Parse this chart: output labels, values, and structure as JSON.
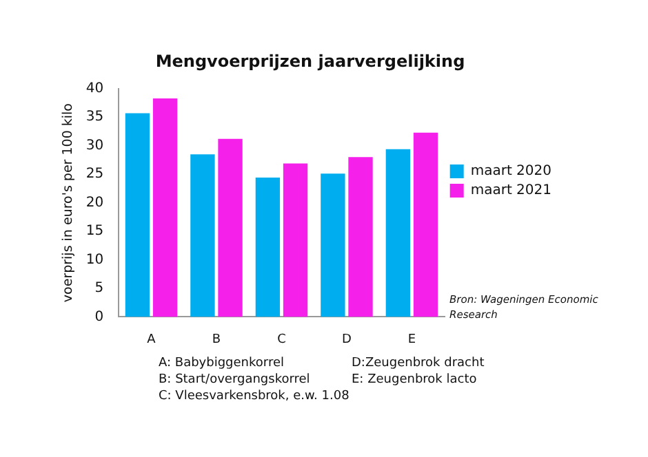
{
  "chart_data": {
    "type": "bar",
    "title": "Mengvoerprijzen jaarvergelijking",
    "ylabel": "voerprijs in euro's per 100 kilo",
    "categories": [
      "A",
      "B",
      "C",
      "D",
      "E"
    ],
    "series": [
      {
        "name": "maart 2020",
        "color": "#00aeef",
        "values": [
          35.7,
          28.5,
          24.4,
          25.1,
          29.4
        ]
      },
      {
        "name": "maart 2021",
        "color": "#f520ea",
        "values": [
          38.3,
          31.2,
          26.9,
          28.0,
          32.3
        ]
      }
    ],
    "ylim": [
      0,
      40
    ],
    "yticks": [
      0,
      5,
      10,
      15,
      20,
      25,
      30,
      35,
      40
    ],
    "grid": false,
    "legend": "right",
    "annotations": [
      "A: Babybiggenkorrel",
      "B: Start/overgangskorrel",
      "C: Vleesvarkensbrok, e.w. 1.08",
      "D:Zeugenbrok dracht",
      "E: Zeugenbrok lacto",
      "Bron: Wageningen Economic Research"
    ]
  }
}
